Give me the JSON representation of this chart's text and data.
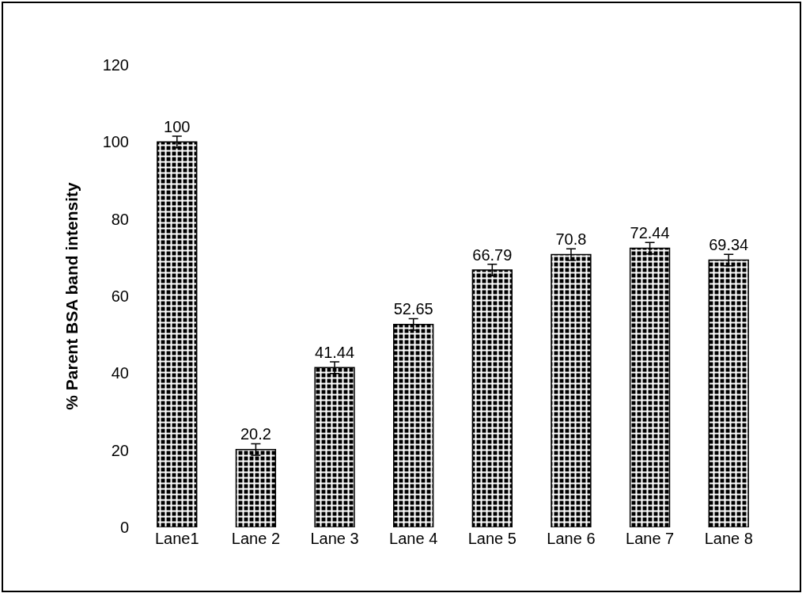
{
  "chart_data": {
    "type": "bar",
    "ylabel": "% Parent BSA band intensity",
    "categories": [
      "Lane1",
      "Lane 2",
      "Lane 3",
      "Lane 4",
      "Lane 5",
      "Lane 6",
      "Lane 7",
      "Lane 8"
    ],
    "values": [
      100,
      20.2,
      41.44,
      52.65,
      66.79,
      70.8,
      72.44,
      69.34
    ],
    "errors": [
      1.5,
      1.5,
      1.5,
      1.5,
      1.5,
      1.5,
      1.5,
      1.5
    ],
    "color": "#000000",
    "data_labels": true,
    "grid": false,
    "ylim": [
      0,
      120
    ],
    "yticks": [
      0,
      20,
      40,
      60,
      80,
      100,
      120
    ]
  }
}
